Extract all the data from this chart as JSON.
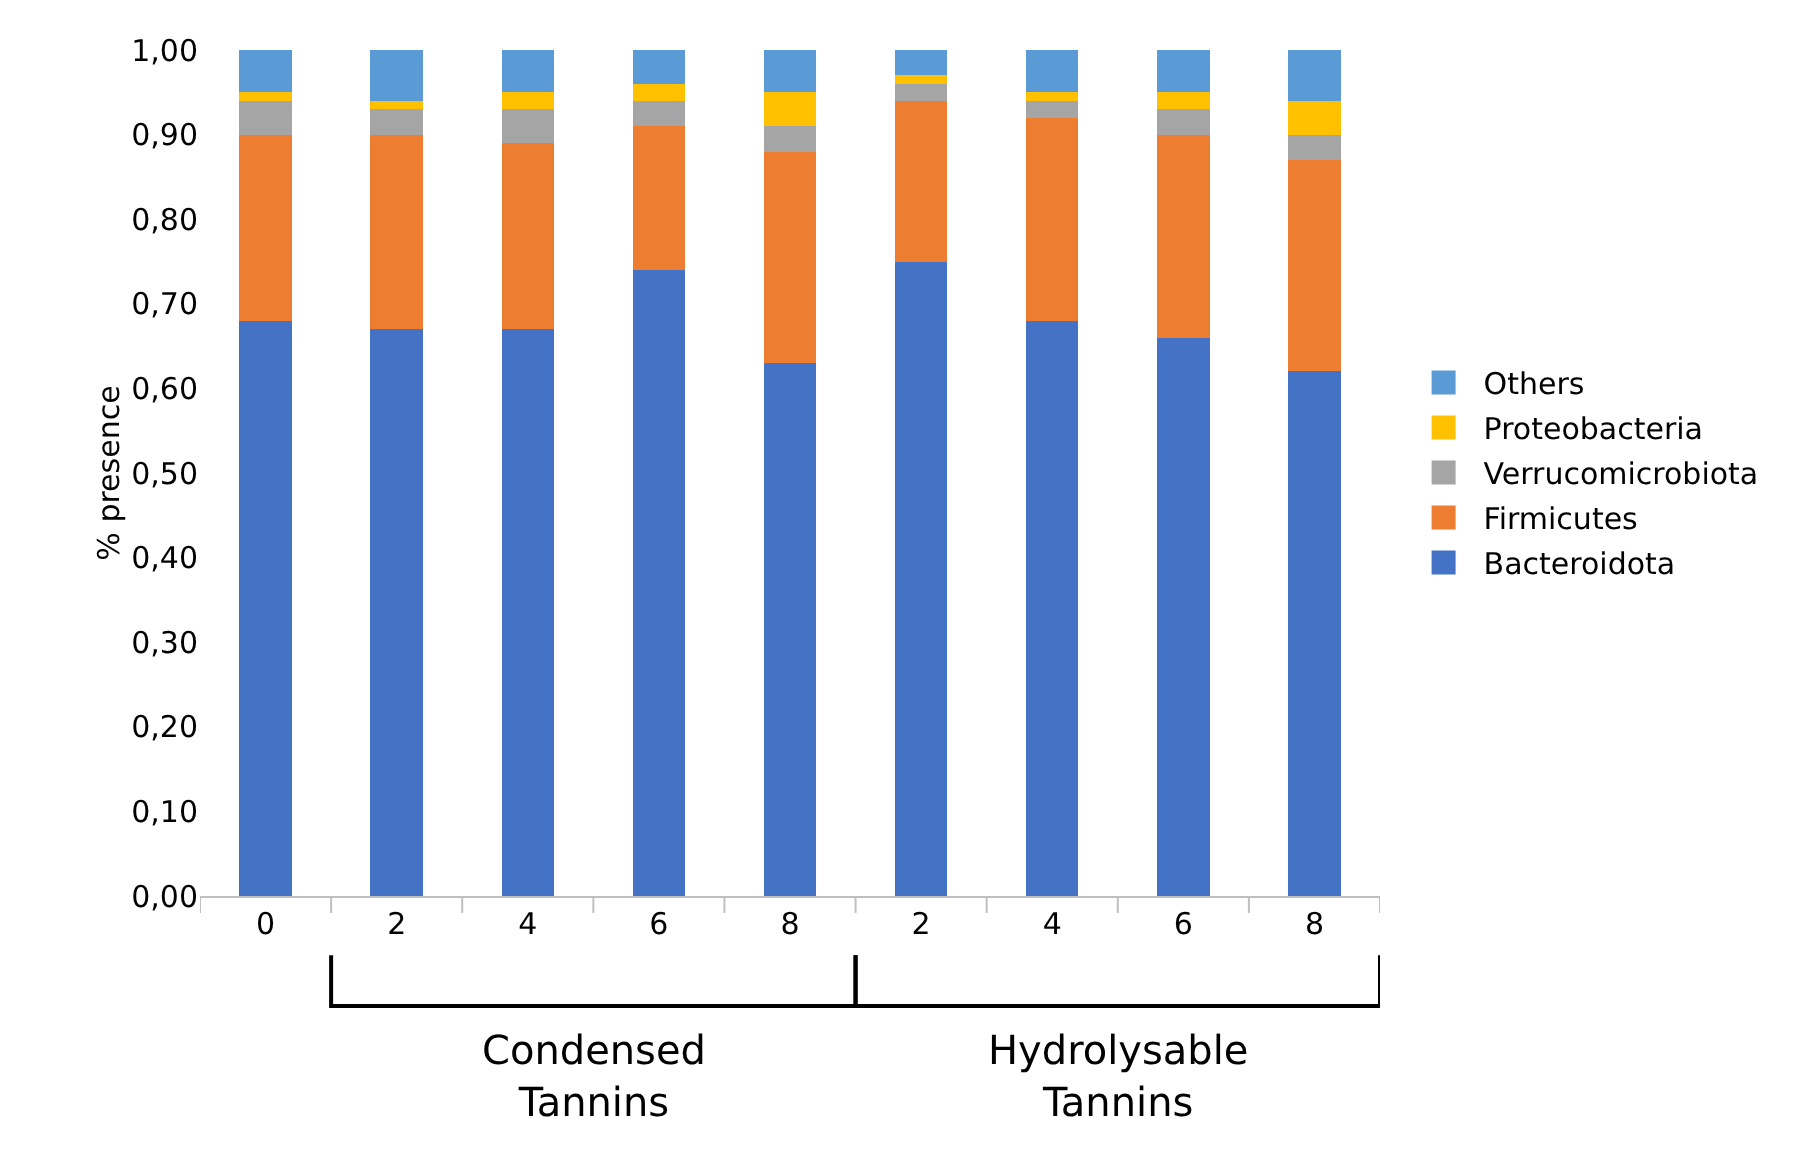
{
  "chart_data": {
    "type": "bar",
    "stacked": true,
    "ylabel": "% presence",
    "categories": [
      "0",
      "2",
      "4",
      "6",
      "8",
      "2",
      "4",
      "6",
      "8"
    ],
    "series": [
      {
        "name": "Bacteroidota",
        "color": "#4472c4",
        "values": [
          0.68,
          0.67,
          0.67,
          0.74,
          0.63,
          0.75,
          0.68,
          0.66,
          0.62
        ]
      },
      {
        "name": "Firmicutes",
        "color": "#ed7d31",
        "values": [
          0.22,
          0.23,
          0.22,
          0.17,
          0.25,
          0.19,
          0.24,
          0.24,
          0.25
        ]
      },
      {
        "name": "Verrucomicrobiota",
        "color": "#a5a5a5",
        "values": [
          0.04,
          0.03,
          0.04,
          0.03,
          0.03,
          0.02,
          0.02,
          0.03,
          0.03
        ]
      },
      {
        "name": "Proteobacteria",
        "color": "#ffc000",
        "values": [
          0.01,
          0.01,
          0.02,
          0.02,
          0.04,
          0.01,
          0.01,
          0.02,
          0.04
        ]
      },
      {
        "name": "Others",
        "color": "#5b9bd5",
        "values": [
          0.05,
          0.06,
          0.05,
          0.04,
          0.05,
          0.03,
          0.05,
          0.05,
          0.06
        ]
      }
    ],
    "ylim": [
      0,
      1
    ],
    "yticks": [
      {
        "value": 0,
        "label": "0,00"
      },
      {
        "value": 0.1,
        "label": "0,10"
      },
      {
        "value": 0.2,
        "label": "0,20"
      },
      {
        "value": 0.3,
        "label": "0,30"
      },
      {
        "value": 0.4,
        "label": "0,40"
      },
      {
        "value": 0.5,
        "label": "0,50"
      },
      {
        "value": 0.6,
        "label": "0,60"
      },
      {
        "value": 0.7,
        "label": "0,70"
      },
      {
        "value": 0.8,
        "label": "0,80"
      },
      {
        "value": 0.9,
        "label": "0,90"
      },
      {
        "value": 1,
        "label": "1,00"
      }
    ],
    "grid": false,
    "legend": "right",
    "annotations": [
      "Condensed\nTannins",
      "Hydrolysable\nTannins"
    ]
  }
}
